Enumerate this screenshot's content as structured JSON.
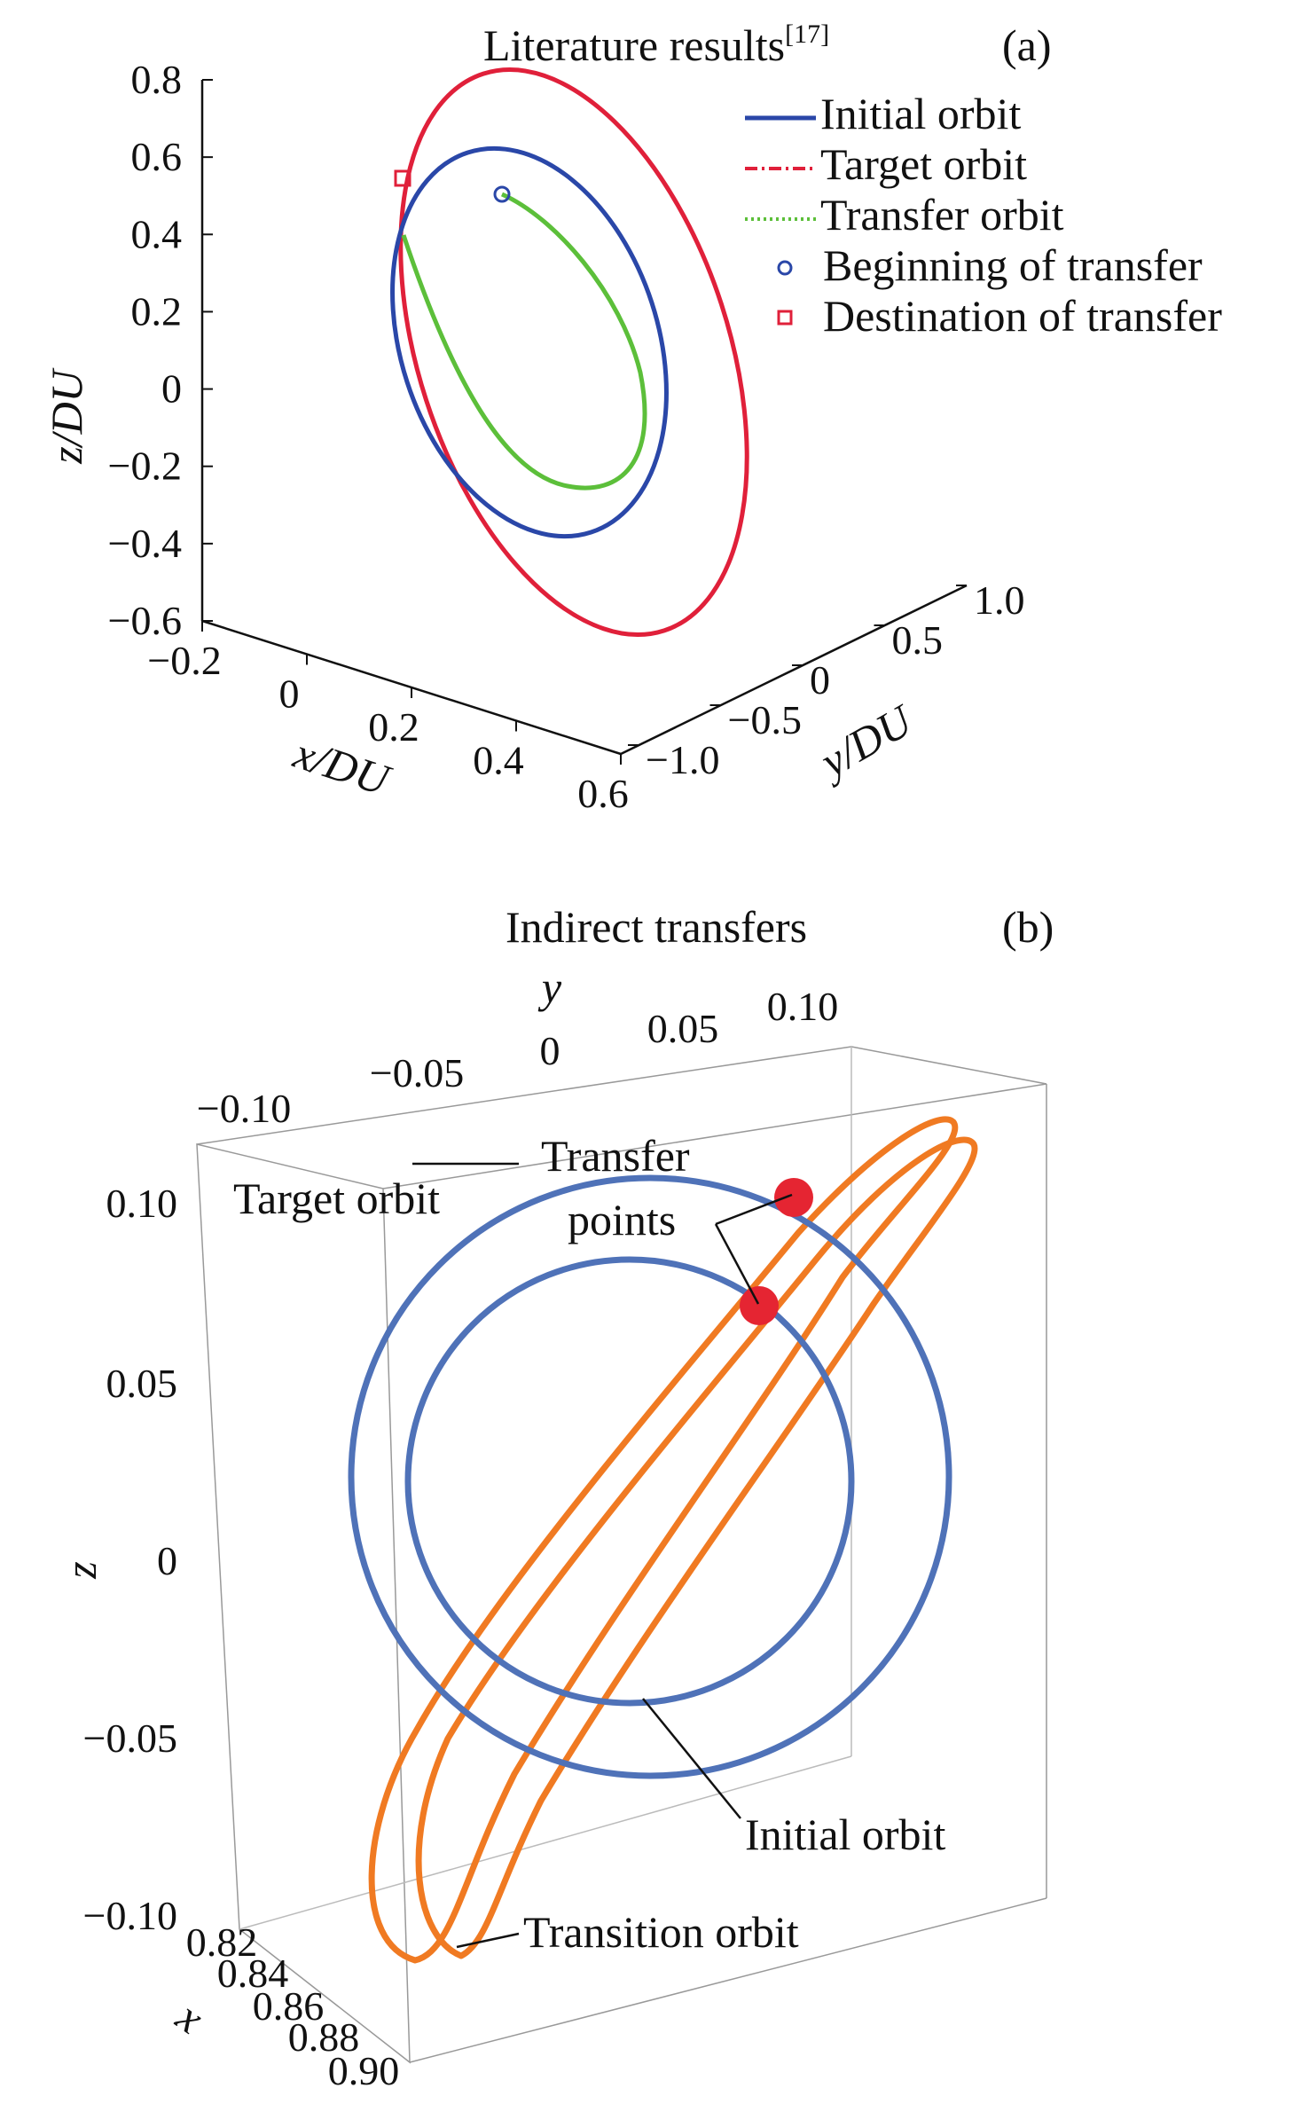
{
  "chart_data": [
    {
      "panel": "(a)",
      "type": "line",
      "title": "Literature results",
      "title_ref": "[17]",
      "xlabel": "x/DU",
      "ylabel": "y/DU",
      "zlabel": "z/DU",
      "x_ticks": [
        "−0.2",
        "0",
        "0.2",
        "0.4",
        "0.6"
      ],
      "y_ticks": [
        "−1.0",
        "−0.5",
        "0",
        "0.5",
        "1.0"
      ],
      "z_ticks": [
        "0.8",
        "0.6",
        "0.4",
        "0.2",
        "0",
        "−0.2",
        "−0.4",
        "−0.6"
      ],
      "xlim": [
        -0.2,
        0.6
      ],
      "ylim": [
        -1.0,
        1.0
      ],
      "zlim": [
        -0.6,
        0.8
      ],
      "legend_position": "top-right",
      "legend": [
        {
          "label": "Initial orbit",
          "style": "solid",
          "color": "#2a47a8"
        },
        {
          "label": "Target orbit",
          "style": "dash-dot",
          "color": "#e0203a"
        },
        {
          "label": "Transfer orbit",
          "style": "dotted",
          "color": "#5cbf3a"
        },
        {
          "label": "Beginning of transfer",
          "style": "circle-marker",
          "color": "#2a47a8"
        },
        {
          "label": "Destination of transfer",
          "style": "square-marker",
          "color": "#e0203a"
        }
      ],
      "series": [
        {
          "name": "Initial orbit",
          "color": "#2a47a8",
          "z_range": [
            -0.36,
            0.62
          ]
        },
        {
          "name": "Target orbit",
          "color": "#e0203a",
          "z_range": [
            -0.57,
            0.86
          ]
        },
        {
          "name": "Transfer orbit",
          "color": "#5cbf3a",
          "z_range": [
            -0.24,
            0.6
          ]
        }
      ],
      "markers": [
        {
          "name": "Beginning of transfer",
          "z": 0.59
        },
        {
          "name": "Destination of transfer",
          "z": 0.64
        }
      ]
    },
    {
      "panel": "(b)",
      "type": "line",
      "title": "Indirect transfers",
      "xlabel": "x",
      "ylabel": "y",
      "zlabel": "z",
      "x_ticks": [
        "0.82",
        "0.84",
        "0.86",
        "0.88",
        "0.90"
      ],
      "y_ticks": [
        "−0.10",
        "−0.05",
        "0",
        "0.05",
        "0.10"
      ],
      "z_ticks": [
        "0.10",
        "0.05",
        "0",
        "−0.05",
        "−0.10"
      ],
      "xlim": [
        0.82,
        0.9
      ],
      "ylim": [
        -0.1,
        0.1
      ],
      "zlim": [
        -0.1,
        0.1
      ],
      "series": [
        {
          "name": "Target orbit",
          "color": "#4f72b8",
          "z_range": [
            -0.067,
            0.115
          ]
        },
        {
          "name": "Initial orbit",
          "color": "#4f72b8",
          "z_range": [
            -0.043,
            0.083
          ]
        },
        {
          "name": "Transition orbit",
          "color": "#f07a22",
          "z_range": [
            -0.109,
            0.124
          ]
        }
      ],
      "annotations": [
        "Target orbit",
        "Transfer points",
        "Initial orbit",
        "Transition orbit"
      ],
      "transfer_points": 2
    }
  ]
}
